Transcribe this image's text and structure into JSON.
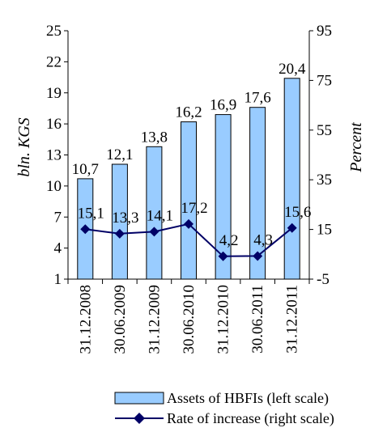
{
  "chart_data": {
    "type": "bar",
    "categories": [
      "31.12.2008",
      "30.06.2009",
      "31.12.2009",
      "30.06.2010",
      "31.12.2010",
      "30.06.2011",
      "31.12.2011"
    ],
    "series": [
      {
        "name": "Assets of HBFIs (left scale)",
        "type": "bar",
        "axis": "left",
        "values": [
          10.7,
          12.1,
          13.8,
          16.2,
          16.9,
          17.6,
          20.4
        ],
        "labels": [
          "10,7",
          "12,1",
          "13,8",
          "16,2",
          "16,9",
          "17,6",
          "20,4"
        ],
        "color": "#99CCFF"
      },
      {
        "name": "Rate of increase (right scale)",
        "type": "line",
        "axis": "right",
        "values": [
          15.1,
          13.3,
          14.1,
          17.2,
          4.2,
          4.3,
          15.6
        ],
        "labels": [
          "15,1",
          "13,3",
          "14,1",
          "17,2",
          "4,2",
          "4,3",
          "15,6"
        ],
        "color": "#000066"
      }
    ],
    "ylabel_left": "bln. KGS",
    "ylabel_right": "Percent",
    "ylim_left": [
      1,
      25
    ],
    "yticks_left": [
      "1",
      "4",
      "7",
      "10",
      "13",
      "16",
      "19",
      "22",
      "25"
    ],
    "ylim_right": [
      -5,
      95
    ],
    "yticks_right": [
      "-5",
      "15",
      "35",
      "55",
      "75",
      "95"
    ],
    "grid": false,
    "legend_position": "bottom"
  }
}
